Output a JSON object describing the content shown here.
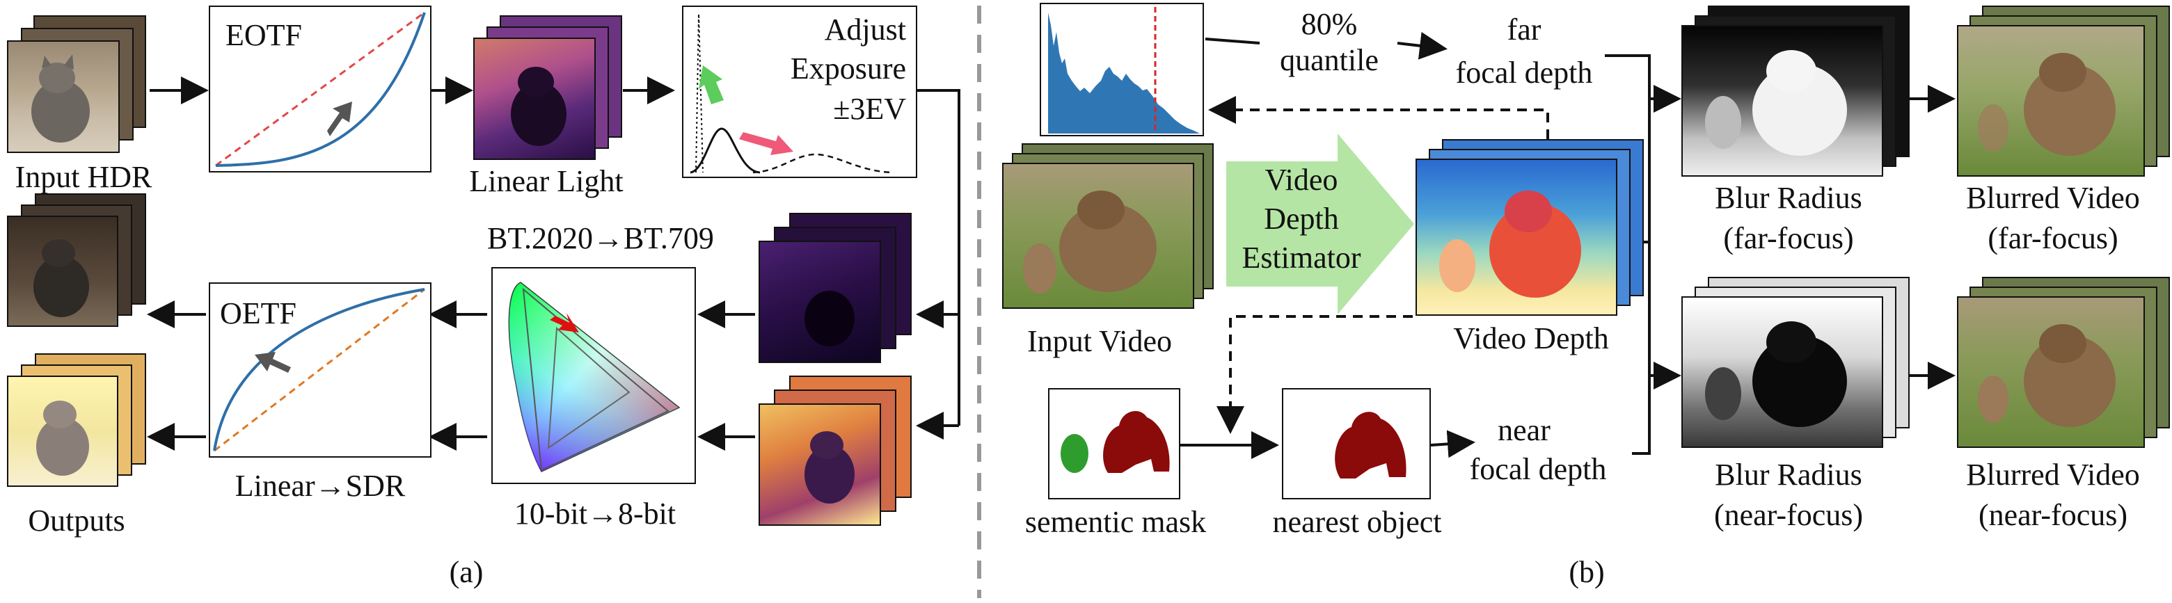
{
  "panel_a": {
    "caption": "(a)",
    "labels": {
      "input_hdr": "Input HDR",
      "eotf": "EOTF",
      "linear_light": "Linear Light",
      "adjust_line1": "Adjust",
      "adjust_line2": "Exposure",
      "adjust_line3": "±3EV",
      "bt_conversion": "BT.2020→BT.709",
      "oetf": "OETF",
      "linear_sdr": "Linear→SDR",
      "bit_depth": "10-bit→8-bit",
      "outputs": "Outputs"
    }
  },
  "panel_b": {
    "caption": "(b)",
    "labels": {
      "quantile_line1": "80%",
      "quantile_line2": "quantile",
      "far_line1": "far",
      "far_line2": "focal depth",
      "estimator_line1": "Video",
      "estimator_line2": "Depth",
      "estimator_line3": "Estimator",
      "input_video": "Input Video",
      "video_depth": "Video Depth",
      "semantic_mask": "sementic mask",
      "nearest_object": "nearest object",
      "near_line1": "near",
      "near_line2": "focal depth",
      "blur_far_line1": "Blur Radius",
      "blur_far_line2": "(far-focus)",
      "blur_near_line1": "Blur Radius",
      "blur_near_line2": "(near-focus)",
      "blurred_far_line1": "Blurred Video",
      "blurred_far_line2": "(far-focus)",
      "blurred_near_line1": "Blurred Video",
      "blurred_near_line2": "(near-focus)"
    }
  },
  "colors": {
    "eotf_curve": "#2e6fa8",
    "eotf_diagonal": "#e04848",
    "oetf_curve": "#2e6fa8",
    "oetf_diagonal": "#e07820",
    "green_arrow": "#5ccc5c",
    "pink_arrow": "#ee5a78",
    "grey_arrow": "#555555",
    "histogram": "#2f77b4",
    "quantile_line": "#d62728",
    "estimator": "#b5e5a5",
    "mask_red": "#8b0a0a",
    "mask_green": "#2e9d2e"
  }
}
